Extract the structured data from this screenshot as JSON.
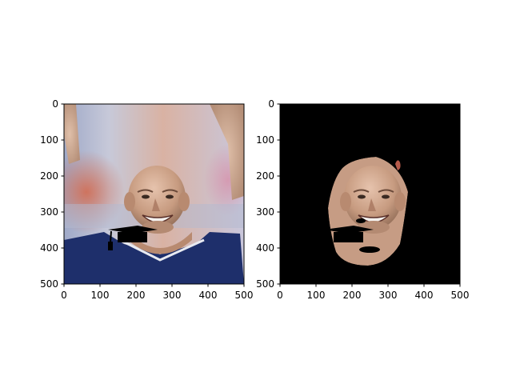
{
  "figure": {
    "background": "#ffffff"
  },
  "chart_data": [
    {
      "type": "image",
      "content": "photo of a smiling bald man looking upward, wearing a dark blue shirt, blurred red and blue stadium background; a small black graduation-cap overlay is drawn on the chin",
      "xlim": [
        0,
        500
      ],
      "ylim": [
        500,
        0
      ],
      "xticks": [
        "0",
        "100",
        "200",
        "300",
        "400",
        "500"
      ],
      "yticks": [
        "0",
        "100",
        "200",
        "300",
        "400",
        "500"
      ],
      "grid": false,
      "colors": {
        "background": "#b9c1d8",
        "shirt": "#1e2f6b",
        "skin": "#caa38c",
        "overlay": "#000000"
      }
    },
    {
      "type": "image",
      "content": "segmentation mask output: only the face region of the same photo is kept, everything else is black; the black graduation-cap overlay remains on the chin",
      "xlim": [
        0,
        500
      ],
      "ylim": [
        500,
        0
      ],
      "xticks": [
        "0",
        "100",
        "200",
        "300",
        "400",
        "500"
      ],
      "yticks": [
        "0",
        "100",
        "200",
        "300",
        "400",
        "500"
      ],
      "grid": false,
      "colors": {
        "background": "#000000",
        "skin": "#caa38c",
        "overlay": "#000000"
      }
    }
  ]
}
